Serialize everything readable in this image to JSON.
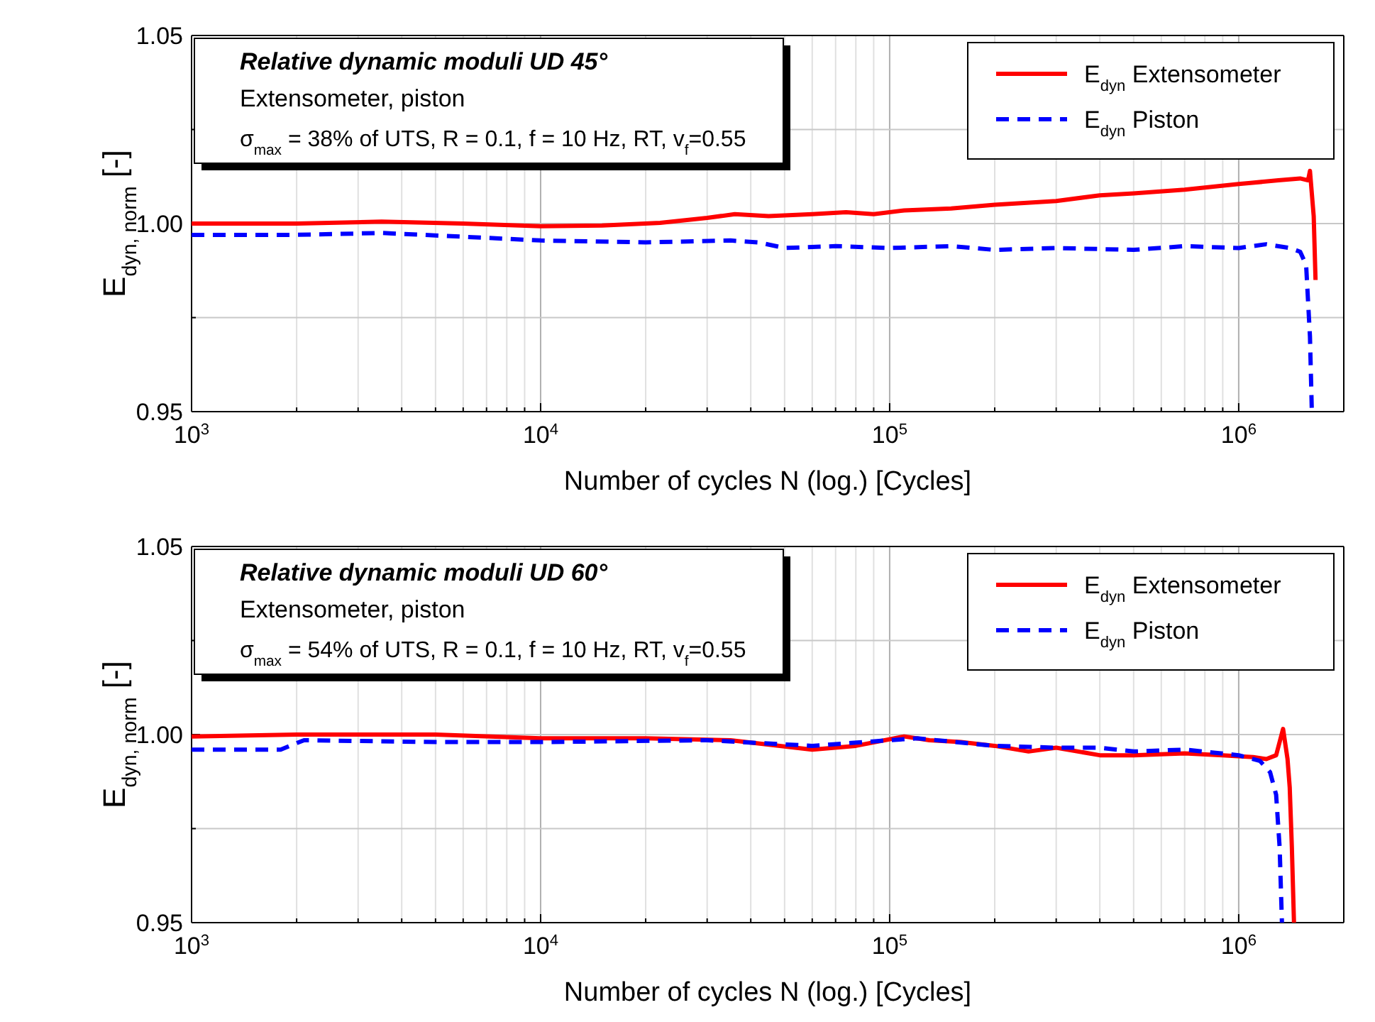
{
  "chart_data": [
    {
      "type": "line",
      "title": "Relative dynamic moduli UD 45°",
      "subtitle": "Extensometer, piston",
      "annotations": [
        "σ$_{max}$ = 38% of UTS, R = 0.1, f = 10 Hz, RT, v$_{f}$=0.55"
      ],
      "xlabel": "Number of cycles N (log.) [Cycles]",
      "ylabel": "E$_{dyn, norm}$ [-]",
      "log": "x",
      "grid": true,
      "legend": "top right",
      "marker": "none",
      "xlim": [
        1000,
        2000000
      ],
      "ylim": [
        0.95,
        1.05
      ],
      "xticks": [
        {
          "value": 1000,
          "label": "10$^{3}$"
        },
        {
          "value": 2000,
          "label": null
        },
        {
          "value": 3000,
          "label": null
        },
        {
          "value": 4000,
          "label": null
        },
        {
          "value": 5000,
          "label": null
        },
        {
          "value": 6000,
          "label": null
        },
        {
          "value": 7000,
          "label": null
        },
        {
          "value": 8000,
          "label": null
        },
        {
          "value": 9000,
          "label": null
        },
        {
          "value": 10000,
          "label": "10$^{4}$"
        },
        {
          "value": 20000,
          "label": null
        },
        {
          "value": 30000,
          "label": null
        },
        {
          "value": 40000,
          "label": null
        },
        {
          "value": 50000,
          "label": null
        },
        {
          "value": 60000,
          "label": null
        },
        {
          "value": 70000,
          "label": null
        },
        {
          "value": 80000,
          "label": null
        },
        {
          "value": 90000,
          "label": null
        },
        {
          "value": 100000,
          "label": "10$^{5}$"
        },
        {
          "value": 200000,
          "label": null
        },
        {
          "value": 300000,
          "label": null
        },
        {
          "value": 400000,
          "label": null
        },
        {
          "value": 500000,
          "label": null
        },
        {
          "value": 600000,
          "label": null
        },
        {
          "value": 700000,
          "label": null
        },
        {
          "value": 800000,
          "label": null
        },
        {
          "value": 900000,
          "label": null
        },
        {
          "value": 1000000,
          "label": "10$^{6}$"
        },
        {
          "value": 2000000,
          "label": null
        }
      ],
      "yticks": [
        {
          "value": 0.95,
          "label": "0.95"
        },
        {
          "value": 0.975,
          "label": null
        },
        {
          "value": 1.0,
          "label": "1.00"
        },
        {
          "value": 1.025,
          "label": null
        },
        {
          "value": 1.05,
          "label": "1.05"
        }
      ],
      "series": [
        {
          "name": "E$_{dyn}$ Extensometer",
          "color": "#ff0000",
          "line_style": "solid",
          "x": [
            1000,
            2000,
            3500,
            6000,
            10000,
            15000,
            22000,
            30000,
            36000,
            45000,
            60000,
            75000,
            90000,
            110000,
            150000,
            200000,
            300000,
            400000,
            500000,
            700000,
            1000000,
            1300000,
            1500000,
            1580000,
            1600000,
            1640000,
            1660000
          ],
          "values": [
            1.0,
            1.0,
            1.0005,
            1.0,
            0.9993,
            0.9995,
            1.0002,
            1.0015,
            1.0025,
            1.002,
            1.0025,
            1.003,
            1.0025,
            1.0035,
            1.004,
            1.005,
            1.006,
            1.0075,
            1.008,
            1.009,
            1.0105,
            1.0115,
            1.012,
            1.0115,
            1.014,
            1.002,
            0.985
          ]
        },
        {
          "name": "E$_{dyn}$ Piston",
          "color": "#0000ff",
          "line_style": "dashed",
          "x": [
            1000,
            2000,
            3500,
            6000,
            10000,
            20000,
            35000,
            42000,
            50000,
            70000,
            100000,
            150000,
            200000,
            300000,
            500000,
            700000,
            1000000,
            1200000,
            1400000,
            1500000,
            1560000,
            1600000,
            1620000
          ],
          "values": [
            0.997,
            0.997,
            0.9975,
            0.9965,
            0.9955,
            0.995,
            0.9955,
            0.995,
            0.9935,
            0.994,
            0.9935,
            0.994,
            0.993,
            0.9935,
            0.993,
            0.994,
            0.9935,
            0.9945,
            0.9935,
            0.9925,
            0.989,
            0.97,
            0.95
          ]
        }
      ]
    },
    {
      "type": "line",
      "title": "Relative dynamic moduli UD 60°",
      "subtitle": "Extensometer, piston",
      "annotations": [
        "σ$_{max}$ = 54% of UTS, R = 0.1, f = 10 Hz, RT, v$_{f}$=0.55"
      ],
      "xlabel": "Number of cycles N (log.) [Cycles]",
      "ylabel": "E$_{dyn, norm}$ [-]",
      "log": "x",
      "grid": true,
      "legend": "top right",
      "marker": "none",
      "xlim": [
        1000,
        2000000
      ],
      "ylim": [
        0.95,
        1.05
      ],
      "xticks": [
        {
          "value": 1000,
          "label": "10$^{3}$"
        },
        {
          "value": 2000,
          "label": null
        },
        {
          "value": 3000,
          "label": null
        },
        {
          "value": 4000,
          "label": null
        },
        {
          "value": 5000,
          "label": null
        },
        {
          "value": 6000,
          "label": null
        },
        {
          "value": 7000,
          "label": null
        },
        {
          "value": 8000,
          "label": null
        },
        {
          "value": 9000,
          "label": null
        },
        {
          "value": 10000,
          "label": "10$^{4}$"
        },
        {
          "value": 20000,
          "label": null
        },
        {
          "value": 30000,
          "label": null
        },
        {
          "value": 40000,
          "label": null
        },
        {
          "value": 50000,
          "label": null
        },
        {
          "value": 60000,
          "label": null
        },
        {
          "value": 70000,
          "label": null
        },
        {
          "value": 80000,
          "label": null
        },
        {
          "value": 90000,
          "label": null
        },
        {
          "value": 100000,
          "label": "10$^{5}$"
        },
        {
          "value": 200000,
          "label": null
        },
        {
          "value": 300000,
          "label": null
        },
        {
          "value": 400000,
          "label": null
        },
        {
          "value": 500000,
          "label": null
        },
        {
          "value": 600000,
          "label": null
        },
        {
          "value": 700000,
          "label": null
        },
        {
          "value": 800000,
          "label": null
        },
        {
          "value": 900000,
          "label": null
        },
        {
          "value": 1000000,
          "label": "10$^{6}$"
        },
        {
          "value": 2000000,
          "label": null
        }
      ],
      "yticks": [
        {
          "value": 0.95,
          "label": "0.95"
        },
        {
          "value": 0.975,
          "label": null
        },
        {
          "value": 1.0,
          "label": "1.00"
        },
        {
          "value": 1.025,
          "label": null
        },
        {
          "value": 1.05,
          "label": "1.05"
        }
      ],
      "series": [
        {
          "name": "E$_{dyn}$ Extensometer",
          "color": "#ff0000",
          "line_style": "solid",
          "x": [
            1000,
            2000,
            5000,
            10000,
            20000,
            35000,
            60000,
            80000,
            110000,
            130000,
            160000,
            200000,
            250000,
            300000,
            400000,
            500000,
            700000,
            900000,
            1100000,
            1200000,
            1280000,
            1340000,
            1380000,
            1400000,
            1420000,
            1440000
          ],
          "values": [
            0.9995,
            1.0,
            1.0,
            0.999,
            0.999,
            0.9985,
            0.996,
            0.997,
            0.9995,
            0.9985,
            0.998,
            0.997,
            0.9955,
            0.9965,
            0.9945,
            0.9945,
            0.995,
            0.9945,
            0.994,
            0.9935,
            0.9945,
            1.0015,
            0.9935,
            0.986,
            0.97,
            0.95
          ]
        },
        {
          "name": "E$_{dyn}$ Piston",
          "color": "#0000ff",
          "line_style": "dashed",
          "x": [
            1000,
            1800,
            2100,
            5000,
            10000,
            30000,
            60000,
            100000,
            120000,
            200000,
            300000,
            400000,
            500000,
            700000,
            1000000,
            1150000,
            1230000,
            1280000,
            1310000,
            1330000
          ],
          "values": [
            0.996,
            0.996,
            0.9985,
            0.998,
            0.998,
            0.9985,
            0.997,
            0.9985,
            0.999,
            0.997,
            0.9965,
            0.9965,
            0.9955,
            0.996,
            0.9945,
            0.993,
            0.99,
            0.984,
            0.97,
            0.95
          ]
        }
      ]
    }
  ]
}
